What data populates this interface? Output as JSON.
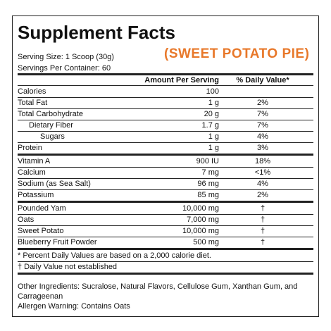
{
  "title": "Supplement Facts",
  "flavor": "(SWEET POTATO PIE)",
  "serving_size": "Serving Size: 1 Scoop (30g)",
  "servings_per_container": "Servings Per Container: 60",
  "header": {
    "amount": "Amount Per Serving",
    "daily_value": "% Daily Value*"
  },
  "sections": [
    [
      {
        "name": "Calories",
        "amount": "100"
      },
      {
        "name": "Total Fat",
        "amount": "1 g",
        "dv": "2%"
      },
      {
        "name": "Total Carbohydrate",
        "amount": "20 g",
        "dv": "7%"
      },
      {
        "name": "Dietary Fiber",
        "amount": "1.7 g",
        "dv": "7%"
      },
      {
        "name": "Sugars",
        "amount": "1 g",
        "dv": "4%"
      },
      {
        "name": "Protein",
        "amount": "1 g",
        "dv": "3%"
      }
    ],
    [
      {
        "name": "Vitamin A",
        "amount": "900 IU",
        "dv": "18%"
      },
      {
        "name": "Calcium",
        "amount": "7 mg",
        "dv": "<1%"
      },
      {
        "name": "Sodium (as Sea Salt)",
        "amount": "96 mg",
        "dv": "4%"
      },
      {
        "name": "Potassium",
        "amount": "85 mg",
        "dv": "2%"
      }
    ],
    [
      {
        "name": "Pounded Yam",
        "amount": "10,000 mg",
        "dv": "†"
      },
      {
        "name": "Oats",
        "amount": "7,000 mg",
        "dv": "†"
      },
      {
        "name": "Sweet Potato",
        "amount": "10,000 mg",
        "dv": "†"
      },
      {
        "name": "Blueberry Fruit Powder",
        "amount": "500 mg",
        "dv": "†"
      }
    ]
  ],
  "footnotes": [
    "* Percent Daily Values are based on a 2,000 calorie diet.",
    "† Daily Value not established"
  ],
  "other_ingredients": "Other Ingredients: Sucralose, Natural Flavors, Cellulose Gum, Xanthan Gum, and Carrageenan",
  "allergen": "Allergen Warning: Contains Oats"
}
